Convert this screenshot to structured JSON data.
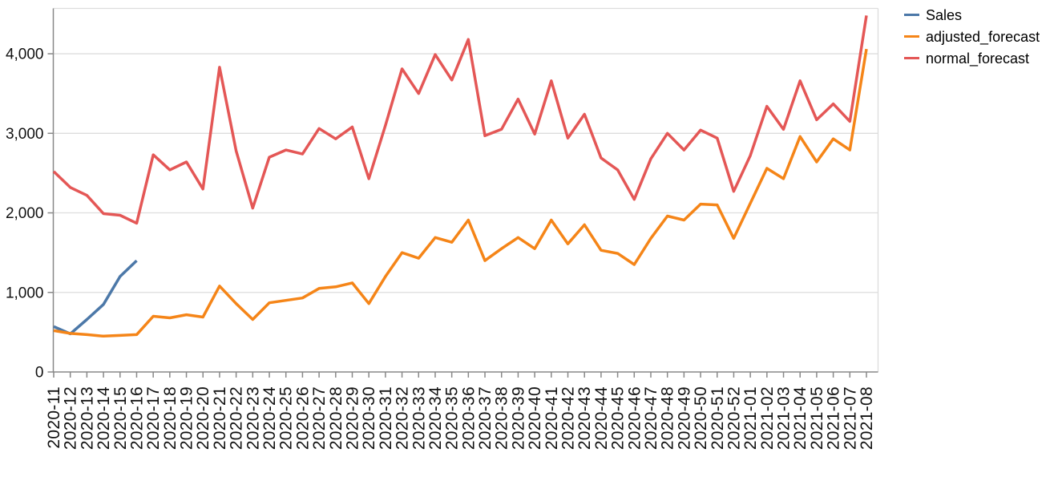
{
  "chart_data": {
    "type": "line",
    "x": [
      "2020-11",
      "2020-12",
      "2020-13",
      "2020-14",
      "2020-15",
      "2020-16",
      "2020-17",
      "2020-18",
      "2020-19",
      "2020-20",
      "2020-21",
      "2020-22",
      "2020-23",
      "2020-24",
      "2020-25",
      "2020-26",
      "2020-27",
      "2020-28",
      "2020-29",
      "2020-30",
      "2020-31",
      "2020-32",
      "2020-33",
      "2020-34",
      "2020-35",
      "2020-36",
      "2020-37",
      "2020-38",
      "2020-39",
      "2020-40",
      "2020-41",
      "2020-42",
      "2020-43",
      "2020-44",
      "2020-45",
      "2020-46",
      "2020-47",
      "2020-48",
      "2020-49",
      "2020-50",
      "2020-51",
      "2020-52",
      "2021-01",
      "2021-02",
      "2021-03",
      "2021-04",
      "2021-05",
      "2021-06",
      "2021-07",
      "2021-08"
    ],
    "series": [
      {
        "name": "Sales",
        "color": "#4c78a8",
        "values": [
          570,
          480,
          660,
          850,
          1200,
          1400,
          null,
          null,
          null,
          null,
          null,
          null,
          null,
          null,
          null,
          null,
          null,
          null,
          null,
          null,
          null,
          null,
          null,
          null,
          null,
          null,
          null,
          null,
          null,
          null,
          null,
          null,
          null,
          null,
          null,
          null,
          null,
          null,
          null,
          null,
          null,
          null,
          null,
          null,
          null,
          null,
          null,
          null,
          null,
          null
        ]
      },
      {
        "name": "adjusted_forecast",
        "color": "#f58518",
        "values": [
          520,
          485,
          470,
          450,
          460,
          470,
          700,
          680,
          720,
          690,
          1080,
          860,
          660,
          870,
          900,
          930,
          1050,
          1070,
          1120,
          860,
          1200,
          1500,
          1430,
          1690,
          1630,
          1910,
          1400,
          1550,
          1690,
          1550,
          1910,
          1610,
          1850,
          1530,
          1490,
          1350,
          1680,
          1960,
          1910,
          2110,
          2100,
          1680,
          2120,
          2560,
          2430,
          2960,
          2640,
          2930,
          2790,
          4060
        ]
      },
      {
        "name": "normal_forecast",
        "color": "#e45756",
        "values": [
          2520,
          2320,
          2220,
          1990,
          1970,
          1870,
          2730,
          2540,
          2640,
          2300,
          3830,
          2780,
          2060,
          2700,
          2790,
          2740,
          3060,
          2930,
          3080,
          2430,
          3100,
          3810,
          3500,
          3990,
          3670,
          4180,
          2970,
          3050,
          3430,
          2990,
          3660,
          2940,
          3240,
          2690,
          2540,
          2170,
          2680,
          3000,
          2790,
          3040,
          2940,
          2270,
          2720,
          3340,
          3050,
          3660,
          3170,
          3370,
          3150,
          4480
        ]
      }
    ],
    "title": "",
    "xlabel": "",
    "ylabel": "",
    "y_ticks": [
      0,
      1000,
      2000,
      3000,
      4000
    ],
    "y_tick_labels": [
      "0",
      "1,000",
      "2,000",
      "3,000",
      "4,000"
    ],
    "ylim": [
      0,
      4570
    ],
    "grid": true,
    "legend_position": "right"
  },
  "style": {
    "grid_color": "#dddddd",
    "border_color": "#dddddd",
    "axis_color": "#888888",
    "label_color": "#111111"
  }
}
